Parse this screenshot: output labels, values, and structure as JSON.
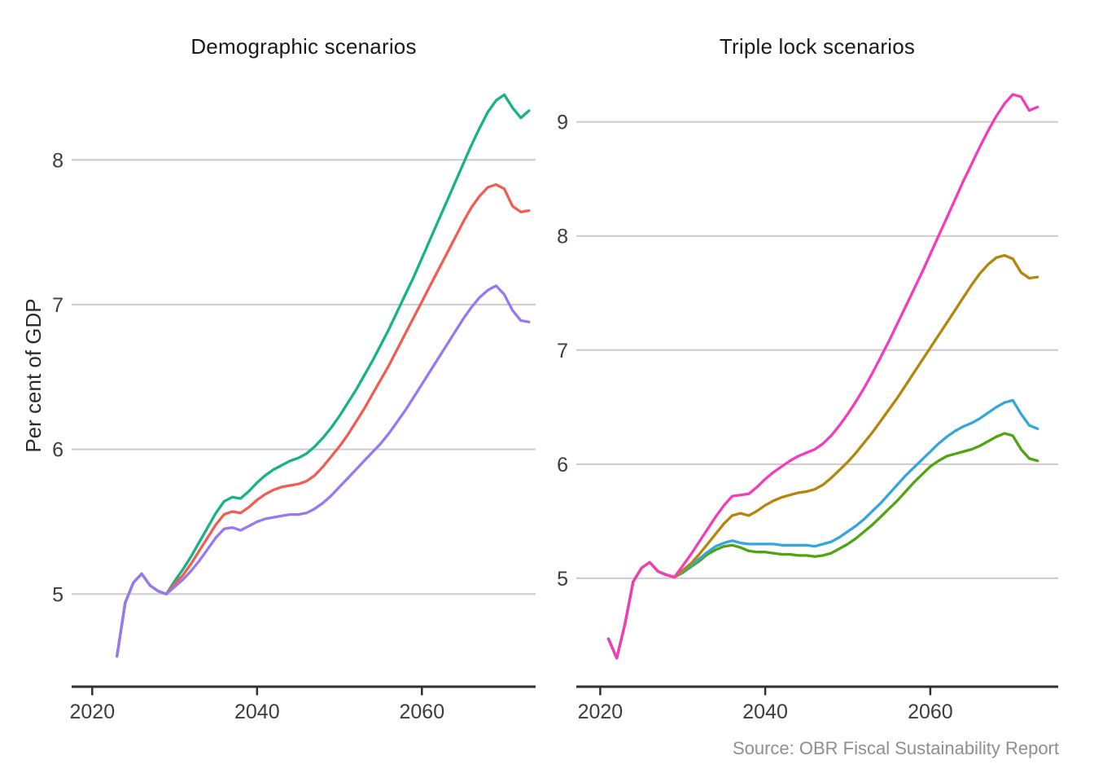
{
  "figure": {
    "y_axis_label": "Per cent of GDP",
    "caption": "Source: OBR Fiscal Sustainability Report",
    "legend": "none"
  },
  "colors": {
    "background": "#FFFFFF",
    "grid": "#CBCBCB",
    "axis_line": "#2F2F2F",
    "tick_label": "#3D3D3D",
    "title": "#1A1A1A",
    "caption": "#8F8F8F"
  },
  "chart_data": [
    {
      "type": "line",
      "title": "Demographic scenarios",
      "ylabel": "Per cent of GDP",
      "xlabel": "",
      "grid": "horizontal",
      "legend_position": "none",
      "x_tick_labels": [
        "2020",
        "2040",
        "2060"
      ],
      "x_tick_years": [
        2020,
        2040,
        2060
      ],
      "y_ticks": [
        5,
        6,
        7,
        8
      ],
      "xlim": [
        2017.5,
        2073.8
      ],
      "ylim": [
        4.36,
        8.57
      ],
      "series": [
        {
          "name": "emerald",
          "color": "#17B385",
          "start_year": 2023,
          "end_year": 2073,
          "values": [
            4.57,
            4.94,
            5.08,
            5.14,
            5.06,
            5.02,
            5.0,
            5.09,
            5.17,
            5.26,
            5.36,
            5.46,
            5.56,
            5.64,
            5.67,
            5.66,
            5.71,
            5.77,
            5.82,
            5.86,
            5.89,
            5.92,
            5.94,
            5.97,
            6.02,
            6.08,
            6.15,
            6.23,
            6.32,
            6.41,
            6.51,
            6.61,
            6.72,
            6.83,
            6.95,
            7.07,
            7.19,
            7.32,
            7.45,
            7.58,
            7.71,
            7.84,
            7.97,
            8.1,
            8.22,
            8.33,
            8.41,
            8.45,
            8.36,
            8.29,
            8.34
          ]
        },
        {
          "name": "red",
          "color": "#EF5E52",
          "start_year": 2023,
          "end_year": 2073,
          "values": [
            4.57,
            4.94,
            5.08,
            5.14,
            5.06,
            5.02,
            5.0,
            5.07,
            5.13,
            5.21,
            5.3,
            5.39,
            5.48,
            5.55,
            5.57,
            5.56,
            5.6,
            5.65,
            5.69,
            5.72,
            5.74,
            5.75,
            5.76,
            5.78,
            5.82,
            5.88,
            5.95,
            6.02,
            6.1,
            6.19,
            6.28,
            6.38,
            6.48,
            6.58,
            6.69,
            6.8,
            6.91,
            7.02,
            7.13,
            7.24,
            7.35,
            7.46,
            7.57,
            7.67,
            7.75,
            7.81,
            7.83,
            7.8,
            7.68,
            7.64,
            7.65
          ]
        },
        {
          "name": "purple",
          "color": "#9679F2",
          "start_year": 2023,
          "end_year": 2073,
          "values": [
            4.57,
            4.94,
            5.08,
            5.14,
            5.06,
            5.02,
            5.0,
            5.05,
            5.1,
            5.16,
            5.23,
            5.31,
            5.39,
            5.45,
            5.46,
            5.44,
            5.47,
            5.5,
            5.52,
            5.53,
            5.54,
            5.55,
            5.55,
            5.56,
            5.59,
            5.63,
            5.68,
            5.74,
            5.8,
            5.86,
            5.92,
            5.98,
            6.04,
            6.11,
            6.19,
            6.27,
            6.36,
            6.45,
            6.54,
            6.63,
            6.72,
            6.81,
            6.9,
            6.98,
            7.05,
            7.1,
            7.13,
            7.07,
            6.96,
            6.89,
            6.88
          ]
        }
      ]
    },
    {
      "type": "line",
      "title": "Triple lock scenarios",
      "ylabel": "",
      "xlabel": "",
      "grid": "horizontal",
      "legend_position": "none",
      "x_tick_labels": [
        "2020",
        "2040",
        "2060"
      ],
      "x_tick_years": [
        2020,
        2040,
        2060
      ],
      "y_ticks": [
        5,
        6,
        7,
        8,
        9
      ],
      "xlim": [
        2017.1,
        2075.5
      ],
      "ylim": [
        4.05,
        9.39
      ],
      "series": [
        {
          "name": "kelly-green",
          "color": "#4EA50E",
          "start_year": 2021,
          "end_year": 2073,
          "values": [
            4.47,
            4.3,
            4.6,
            4.97,
            5.09,
            5.14,
            5.06,
            5.03,
            5.01,
            5.05,
            5.1,
            5.15,
            5.21,
            5.25,
            5.28,
            5.29,
            5.27,
            5.24,
            5.23,
            5.23,
            5.22,
            5.21,
            5.21,
            5.2,
            5.2,
            5.19,
            5.2,
            5.22,
            5.26,
            5.3,
            5.35,
            5.41,
            5.47,
            5.54,
            5.61,
            5.68,
            5.76,
            5.84,
            5.91,
            5.98,
            6.03,
            6.07,
            6.09,
            6.11,
            6.13,
            6.16,
            6.2,
            6.24,
            6.27,
            6.25,
            6.13,
            6.05,
            6.03
          ]
        },
        {
          "name": "sky-blue",
          "color": "#33A7DC",
          "start_year": 2021,
          "end_year": 2073,
          "values": [
            4.47,
            4.3,
            4.6,
            4.97,
            5.09,
            5.14,
            5.06,
            5.03,
            5.01,
            5.06,
            5.11,
            5.17,
            5.23,
            5.28,
            5.31,
            5.33,
            5.31,
            5.3,
            5.3,
            5.3,
            5.3,
            5.29,
            5.29,
            5.29,
            5.29,
            5.28,
            5.3,
            5.32,
            5.36,
            5.41,
            5.46,
            5.52,
            5.59,
            5.66,
            5.74,
            5.82,
            5.9,
            5.97,
            6.04,
            6.11,
            6.18,
            6.24,
            6.29,
            6.33,
            6.36,
            6.4,
            6.45,
            6.5,
            6.54,
            6.56,
            6.44,
            6.34,
            6.31
          ]
        },
        {
          "name": "gold",
          "color": "#B5860B",
          "start_year": 2021,
          "end_year": 2073,
          "values": [
            4.47,
            4.3,
            4.6,
            4.97,
            5.09,
            5.14,
            5.06,
            5.03,
            5.01,
            5.07,
            5.13,
            5.21,
            5.3,
            5.39,
            5.48,
            5.55,
            5.57,
            5.55,
            5.59,
            5.64,
            5.68,
            5.71,
            5.73,
            5.75,
            5.76,
            5.78,
            5.82,
            5.88,
            5.95,
            6.02,
            6.1,
            6.19,
            6.28,
            6.38,
            6.48,
            6.58,
            6.69,
            6.8,
            6.91,
            7.02,
            7.13,
            7.24,
            7.35,
            7.46,
            7.57,
            7.67,
            7.75,
            7.81,
            7.83,
            7.8,
            7.68,
            7.63,
            7.64
          ]
        },
        {
          "name": "magenta",
          "color": "#F23CBB",
          "start_year": 2021,
          "end_year": 2073,
          "values": [
            4.47,
            4.3,
            4.6,
            4.97,
            5.09,
            5.14,
            5.06,
            5.03,
            5.01,
            5.11,
            5.21,
            5.32,
            5.43,
            5.54,
            5.64,
            5.72,
            5.73,
            5.74,
            5.8,
            5.87,
            5.93,
            5.98,
            6.03,
            6.07,
            6.1,
            6.13,
            6.18,
            6.25,
            6.34,
            6.44,
            6.55,
            6.67,
            6.8,
            6.94,
            7.08,
            7.23,
            7.38,
            7.53,
            7.68,
            7.84,
            8.0,
            8.16,
            8.32,
            8.48,
            8.63,
            8.78,
            8.92,
            9.05,
            9.16,
            9.24,
            9.22,
            9.1,
            9.13
          ]
        }
      ]
    }
  ]
}
